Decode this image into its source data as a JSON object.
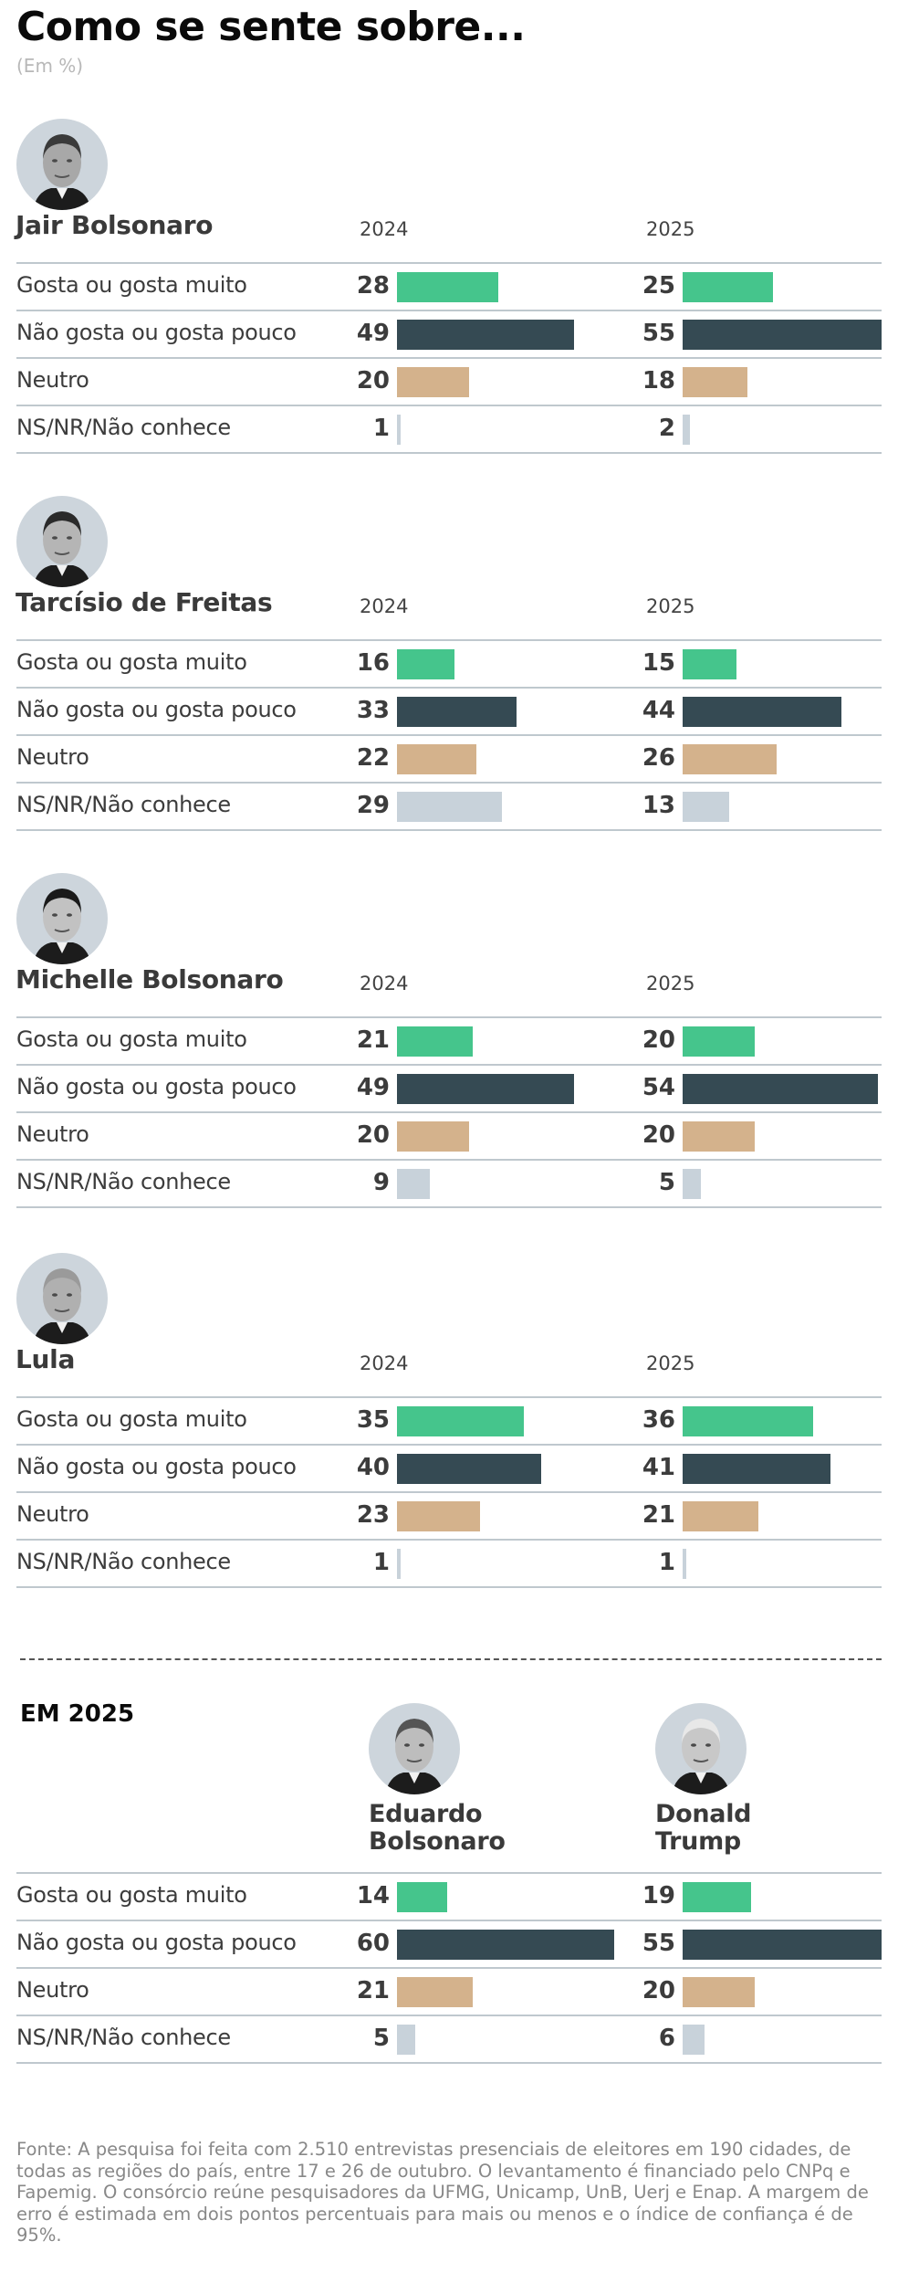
{
  "header": {
    "title": "Como se sente sobre...",
    "subtitle": "(Em %)"
  },
  "colors": {
    "gosta": "#45c58c",
    "nao_gosta": "#354a53",
    "neutro": "#d4b28c",
    "ns_nr": "#c8d2da",
    "rule": "#bfc8ce"
  },
  "categories": [
    "Gosta ou gosta muito",
    "Não gosta ou gosta pouco",
    "Neutro",
    "NS/NR/Não conhece"
  ],
  "years": [
    "2024",
    "2025"
  ],
  "people": [
    {
      "name": "Jair Bolsonaro",
      "icon": "portrait-photo-icon",
      "y2024": [
        "28",
        "49",
        "20",
        "1"
      ],
      "y2025": [
        "25",
        "55",
        "18",
        "2"
      ]
    },
    {
      "name": "Tarcísio de Freitas",
      "icon": "portrait-photo-icon",
      "y2024": [
        "16",
        "33",
        "22",
        "29"
      ],
      "y2025": [
        "15",
        "44",
        "26",
        "13"
      ]
    },
    {
      "name": "Michelle Bolsonaro",
      "icon": "portrait-photo-icon",
      "y2024": [
        "21",
        "49",
        "20",
        "9"
      ],
      "y2025": [
        "20",
        "54",
        "20",
        "5"
      ]
    },
    {
      "name": "Lula",
      "icon": "portrait-photo-icon",
      "y2024": [
        "35",
        "40",
        "23",
        "1"
      ],
      "y2025": [
        "36",
        "41",
        "21",
        "1"
      ]
    }
  ],
  "em2025": {
    "label": "EM 2025",
    "people": [
      {
        "name_line1": "Eduardo",
        "name_line2": "Bolsonaro",
        "values": [
          "14",
          "60",
          "21",
          "5"
        ]
      },
      {
        "name_line1": "Donald",
        "name_line2": "Trump",
        "values": [
          "19",
          "55",
          "20",
          "6"
        ]
      }
    ]
  },
  "footer": {
    "text": "Fonte: A pesquisa foi feita com 2.510 entrevistas presenciais de eleitores em 190 cidades, de todas as regiões do país, entre 17 e 26 de outubro. O levantamento é financiado pelo CNPq e Fapemig. O consórcio reúne pesquisadores da UFMG, Unicamp, UnB, Uerj e Enap. A margem de erro é estimada em dois pontos percentuais para mais ou menos e o índice de confiança é de 95%."
  },
  "chart_data": [
    {
      "type": "bar",
      "title": "Jair Bolsonaro",
      "categories": [
        "Gosta ou gosta muito",
        "Não gosta ou gosta pouco",
        "Neutro",
        "NS/NR/Não conhece"
      ],
      "series": [
        {
          "name": "2024",
          "values": [
            28,
            49,
            20,
            1
          ]
        },
        {
          "name": "2025",
          "values": [
            25,
            55,
            18,
            2
          ]
        }
      ],
      "ylabel": "%",
      "orientation": "horizontal"
    },
    {
      "type": "bar",
      "title": "Tarcísio de Freitas",
      "categories": [
        "Gosta ou gosta muito",
        "Não gosta ou gosta pouco",
        "Neutro",
        "NS/NR/Não conhece"
      ],
      "series": [
        {
          "name": "2024",
          "values": [
            16,
            33,
            22,
            29
          ]
        },
        {
          "name": "2025",
          "values": [
            15,
            44,
            26,
            13
          ]
        }
      ],
      "ylabel": "%",
      "orientation": "horizontal"
    },
    {
      "type": "bar",
      "title": "Michelle Bolsonaro",
      "categories": [
        "Gosta ou gosta muito",
        "Não gosta ou gosta pouco",
        "Neutro",
        "NS/NR/Não conhece"
      ],
      "series": [
        {
          "name": "2024",
          "values": [
            21,
            49,
            20,
            9
          ]
        },
        {
          "name": "2025",
          "values": [
            20,
            54,
            20,
            5
          ]
        }
      ],
      "ylabel": "%",
      "orientation": "horizontal"
    },
    {
      "type": "bar",
      "title": "Lula",
      "categories": [
        "Gosta ou gosta muito",
        "Não gosta ou gosta pouco",
        "Neutro",
        "NS/NR/Não conhece"
      ],
      "series": [
        {
          "name": "2024",
          "values": [
            35,
            40,
            23,
            1
          ]
        },
        {
          "name": "2025",
          "values": [
            36,
            41,
            21,
            1
          ]
        }
      ],
      "ylabel": "%",
      "orientation": "horizontal"
    },
    {
      "type": "bar",
      "title": "EM 2025",
      "categories": [
        "Gosta ou gosta muito",
        "Não gosta ou gosta pouco",
        "Neutro",
        "NS/NR/Não conhece"
      ],
      "series": [
        {
          "name": "Eduardo Bolsonaro",
          "values": [
            14,
            60,
            21,
            5
          ]
        },
        {
          "name": "Donald Trump",
          "values": [
            19,
            55,
            20,
            6
          ]
        }
      ],
      "ylabel": "%",
      "orientation": "horizontal"
    }
  ]
}
